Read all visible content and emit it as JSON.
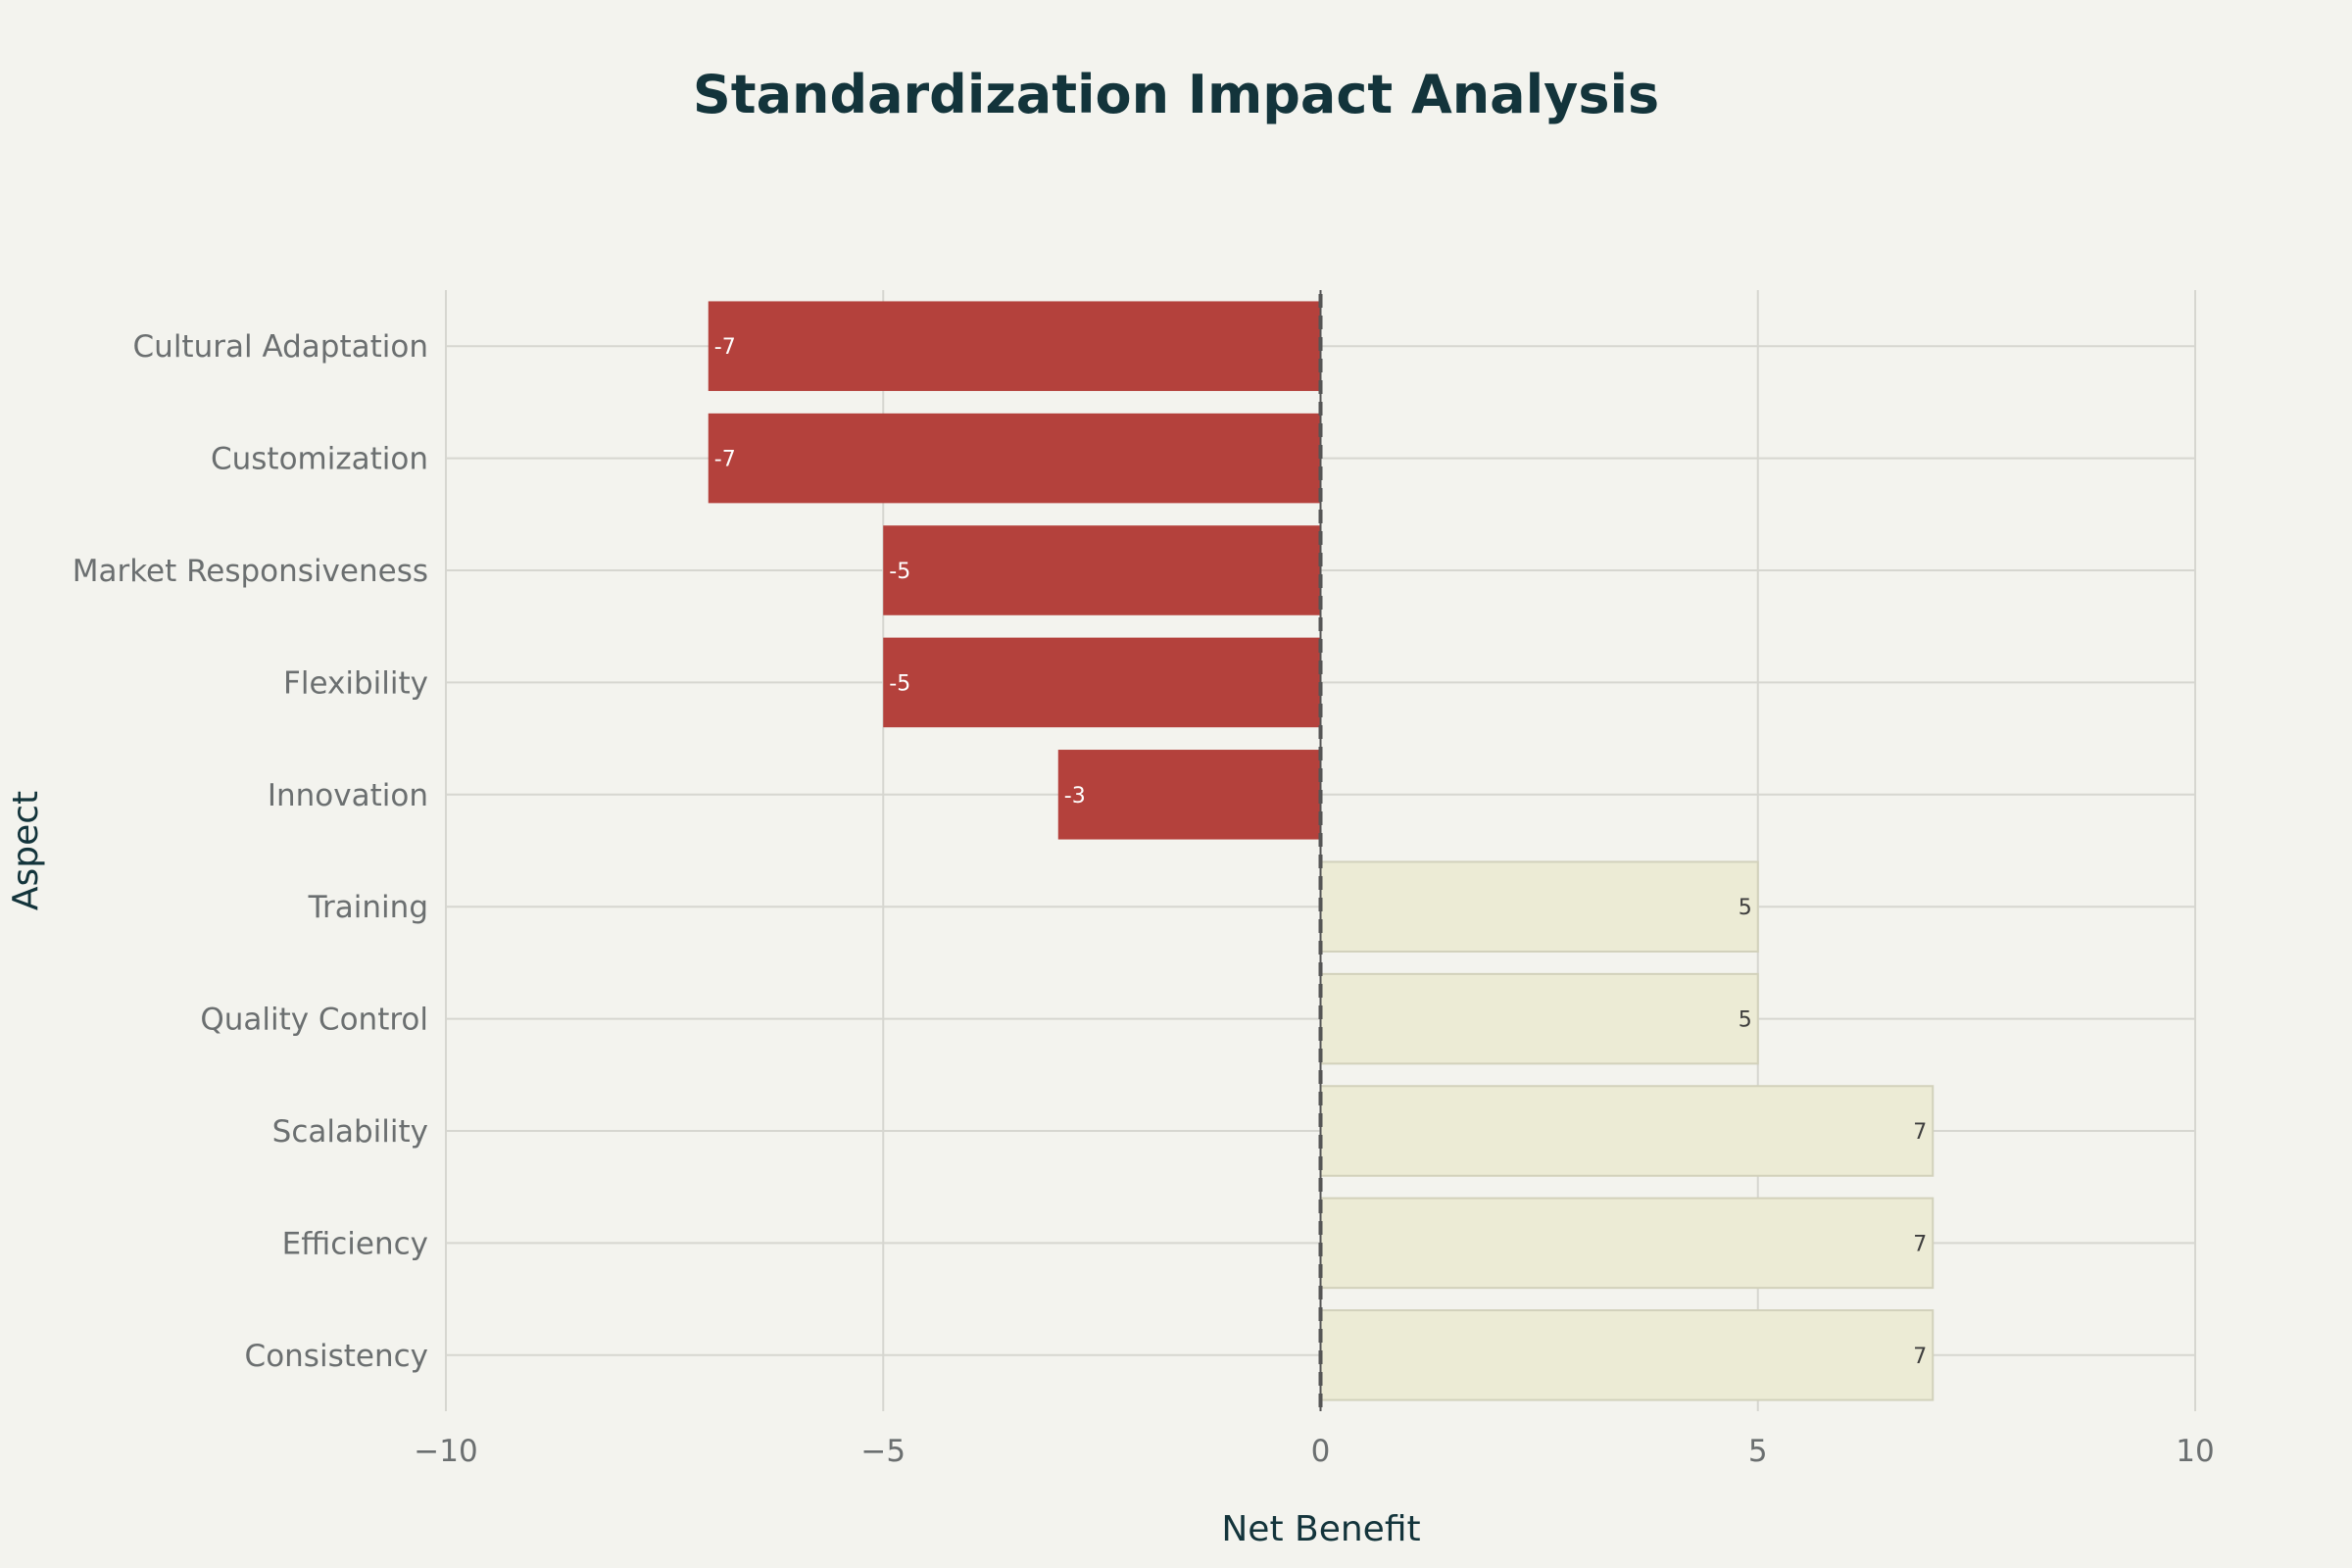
{
  "chart_data": {
    "type": "bar",
    "orientation": "horizontal",
    "title": "Standardization Impact Analysis",
    "xlabel": "Net Benefit",
    "ylabel": "Aspect",
    "xlim": [
      -10,
      10
    ],
    "xticks": [
      -10,
      -5,
      0,
      5,
      10
    ],
    "xtick_labels": [
      "−10",
      "−5",
      "0",
      "5",
      "10"
    ],
    "grid": true,
    "zero_line": "dashed",
    "categories": [
      "Cultural Adaptation",
      "Customization",
      "Market Responsiveness",
      "Flexibility",
      "Innovation",
      "Training",
      "Quality Control",
      "Scalability",
      "Efficiency",
      "Consistency"
    ],
    "values": [
      -7,
      -7,
      -5,
      -5,
      -3,
      5,
      5,
      7,
      7,
      7
    ],
    "colors": {
      "negative": "#b4413c",
      "positive": "#ecebd5",
      "positive_border": "#d2d1bb",
      "negative_label": "#ffffff",
      "positive_label": "#3d3d3d",
      "grid": "#d6d6d0",
      "zero_line": "#555555"
    }
  }
}
